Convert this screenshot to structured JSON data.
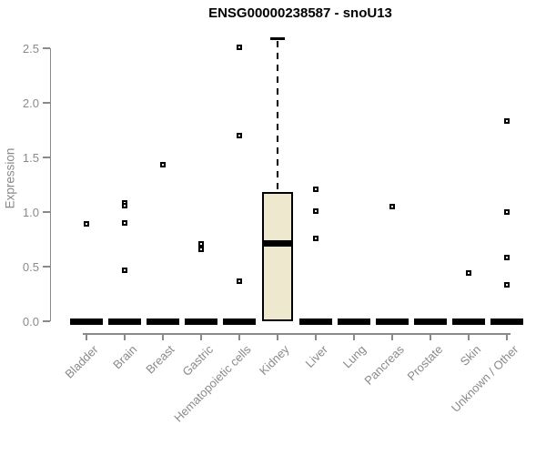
{
  "chart_data": {
    "type": "box",
    "title": "ENSG00000238587 - snoU13",
    "xlabel": "",
    "ylabel": "Expression",
    "ylim": [
      0.0,
      2.5
    ],
    "yticks": [
      "0.0",
      "0.5",
      "1.0",
      "1.5",
      "2.0",
      "2.5"
    ],
    "grid": false,
    "legend": "none",
    "categories": [
      "Bladder",
      "Brain",
      "Breast",
      "Gastric",
      "Hematopoietic cells",
      "Kidney",
      "Liver",
      "Lung",
      "Pancreas",
      "Prostate",
      "Skin",
      "Unknown / Other"
    ],
    "boxes": [
      {
        "category": "Bladder",
        "q1": 0,
        "median": 0,
        "q3": 0,
        "whisker_low": 0,
        "whisker_high": 0,
        "outliers": [
          0.89
        ]
      },
      {
        "category": "Brain",
        "q1": 0,
        "median": 0,
        "q3": 0,
        "whisker_low": 0,
        "whisker_high": 0,
        "outliers": [
          1.08,
          1.06,
          0.9,
          0.47
        ]
      },
      {
        "category": "Breast",
        "q1": 0,
        "median": 0,
        "q3": 0,
        "whisker_low": 0,
        "whisker_high": 0,
        "outliers": [
          1.43
        ]
      },
      {
        "category": "Gastric",
        "q1": 0,
        "median": 0,
        "q3": 0,
        "whisker_low": 0,
        "whisker_high": 0,
        "outliers": [
          0.71,
          0.66
        ]
      },
      {
        "category": "Hematopoietic cells",
        "q1": 0,
        "median": 0,
        "q3": 0,
        "whisker_low": 0,
        "whisker_high": 0,
        "outliers": [
          2.51,
          1.7,
          0.37
        ]
      },
      {
        "category": "Kidney",
        "q1": 0,
        "median": 0.71,
        "q3": 1.18,
        "whisker_low": 0,
        "whisker_high": 2.59,
        "outliers": []
      },
      {
        "category": "Liver",
        "q1": 0,
        "median": 0,
        "q3": 0,
        "whisker_low": 0,
        "whisker_high": 0,
        "outliers": [
          1.21,
          1.01,
          0.76
        ]
      },
      {
        "category": "Lung",
        "q1": 0,
        "median": 0,
        "q3": 0,
        "whisker_low": 0,
        "whisker_high": 0,
        "outliers": []
      },
      {
        "category": "Pancreas",
        "q1": 0,
        "median": 0,
        "q3": 0,
        "whisker_low": 0,
        "whisker_high": 0,
        "outliers": [
          1.05
        ]
      },
      {
        "category": "Prostate",
        "q1": 0,
        "median": 0,
        "q3": 0,
        "whisker_low": 0,
        "whisker_high": 0,
        "outliers": []
      },
      {
        "category": "Skin",
        "q1": 0,
        "median": 0,
        "q3": 0,
        "whisker_low": 0,
        "whisker_high": 0,
        "outliers": [
          0.44
        ]
      },
      {
        "category": "Unknown / Other",
        "q1": 0,
        "median": 0,
        "q3": 0,
        "whisker_low": 0,
        "whisker_high": 0,
        "outliers": [
          1.83,
          1.0,
          0.58,
          0.33
        ]
      }
    ],
    "colors": {
      "background": "#ffffff",
      "box_fill": "#EDE8CE",
      "box_border": "#000000",
      "median": "#000000",
      "whisker": "#000000",
      "outlier_border": "#000000",
      "outlier_fill": "#ffffff",
      "axis": "#8a8a8a",
      "tick_label": "#8a8a8a",
      "title": "#000000"
    }
  }
}
